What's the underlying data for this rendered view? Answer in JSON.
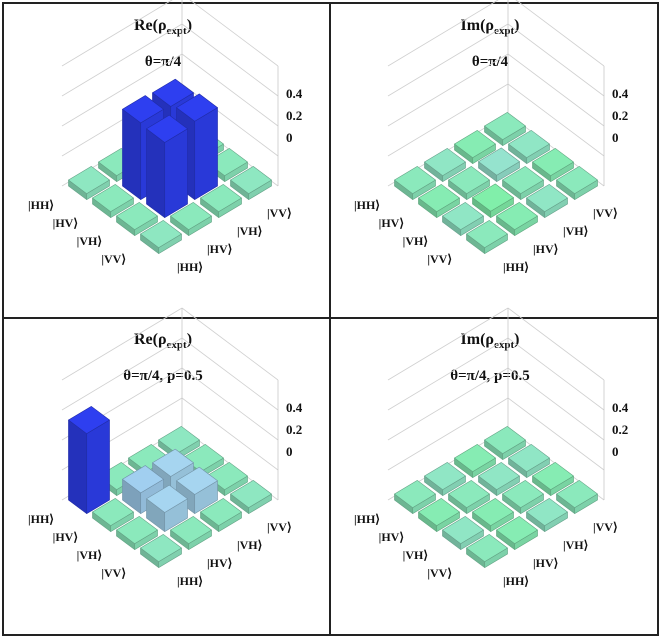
{
  "chart_data": [
    {
      "type": "bar3d",
      "title": "Re(ρ",
      "title_sub": "expt",
      "subtitle": "θ=π/4",
      "row_labels": [
        "|HH⟩",
        "|HV⟩",
        "|VH⟩",
        "|VV⟩"
      ],
      "col_labels": [
        "|HH⟩",
        "|HV⟩",
        "|VH⟩",
        "|VV⟩"
      ],
      "zticks": [
        "0.4",
        "0.2",
        "0"
      ],
      "zlim": [
        0,
        0.4
      ],
      "matrix": [
        [
          0.01,
          0.0,
          0.0,
          0.01
        ],
        [
          0.0,
          0.48,
          0.47,
          0.0
        ],
        [
          0.0,
          0.47,
          0.49,
          0.0
        ],
        [
          0.01,
          0.0,
          0.0,
          0.01
        ]
      ]
    },
    {
      "type": "bar3d",
      "title": "Im(ρ",
      "title_sub": "expt",
      "subtitle": "θ=π/4",
      "row_labels": [
        "|HH⟩",
        "|HV⟩",
        "|VH⟩",
        "|VV⟩"
      ],
      "col_labels": [
        "|HH⟩",
        "|HV⟩",
        "|VH⟩",
        "|VV⟩"
      ],
      "zticks": [
        "0.4",
        "0.2",
        "0"
      ],
      "zlim": [
        0,
        0.4
      ],
      "matrix": [
        [
          0.0,
          0.02,
          -0.02,
          0.0
        ],
        [
          -0.02,
          0.0,
          0.04,
          0.02
        ],
        [
          0.02,
          -0.04,
          0.0,
          -0.02
        ],
        [
          0.0,
          -0.02,
          0.02,
          0.0
        ]
      ]
    },
    {
      "type": "bar3d",
      "title": "Re(ρ",
      "title_sub": "expt",
      "subtitle": "θ=π/4, p=0.5",
      "row_labels": [
        "|HH⟩",
        "|HV⟩",
        "|VH⟩",
        "|VV⟩"
      ],
      "col_labels": [
        "|HH⟩",
        "|HV⟩",
        "|VH⟩",
        "|VV⟩"
      ],
      "zticks": [
        "0.4",
        "0.2",
        "0"
      ],
      "zlim": [
        0,
        0.4
      ],
      "matrix": [
        [
          0.5,
          0.0,
          0.0,
          0.01
        ],
        [
          0.0,
          0.13,
          0.12,
          0.0
        ],
        [
          0.0,
          0.12,
          0.12,
          0.0
        ],
        [
          0.01,
          0.0,
          0.0,
          0.01
        ]
      ]
    },
    {
      "type": "bar3d",
      "title": "Im(ρ",
      "title_sub": "expt",
      "subtitle": "θ=π/4, p=0.5",
      "row_labels": [
        "|HH⟩",
        "|HV⟩",
        "|VH⟩",
        "|VV⟩"
      ],
      "col_labels": [
        "|HH⟩",
        "|HV⟩",
        "|VH⟩",
        "|VV⟩"
      ],
      "zticks": [
        "0.4",
        "0.2",
        "0"
      ],
      "zlim": [
        0,
        0.4
      ],
      "matrix": [
        [
          0.0,
          0.02,
          -0.02,
          0.0
        ],
        [
          -0.02,
          0.0,
          0.02,
          0.02
        ],
        [
          0.02,
          -0.02,
          0.0,
          -0.02
        ],
        [
          0.0,
          -0.02,
          0.02,
          0.0
        ]
      ]
    }
  ],
  "colors": {
    "low": "#7ff0a6",
    "mid": "#a8d8f0",
    "high": "#2e3ff0",
    "border": "#222222"
  }
}
